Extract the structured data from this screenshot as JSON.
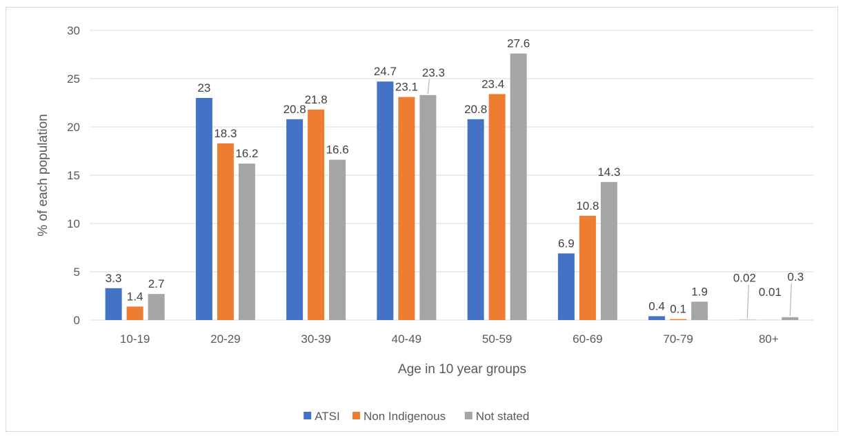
{
  "chart_data": {
    "type": "bar",
    "title": "",
    "xlabel": "Age in 10 year groups",
    "ylabel": "% of each population",
    "ylim": [
      0,
      30
    ],
    "yticks": [
      0,
      5,
      10,
      15,
      20,
      25,
      30
    ],
    "grid": true,
    "legend_position": "bottom",
    "categories": [
      "10-19",
      "20-29",
      "30-39",
      "40-49",
      "50-59",
      "60-69",
      "70-79",
      "80+"
    ],
    "series": [
      {
        "name": "ATSI",
        "color": "#4472c4",
        "values": [
          3.3,
          23,
          20.8,
          24.7,
          20.8,
          6.9,
          0.4,
          0.02
        ],
        "labels": [
          "3.3",
          "23",
          "20.8",
          "24.7",
          "20.8",
          "6.9",
          "0.4",
          "0.02"
        ]
      },
      {
        "name": "Non Indigenous",
        "color": "#ed7d31",
        "values": [
          1.4,
          18.3,
          21.8,
          23.1,
          23.4,
          10.8,
          0.1,
          0.01
        ],
        "labels": [
          "1.4",
          "18.3",
          "21.8",
          "23.1",
          "23.4",
          "10.8",
          "0.1",
          "0.01"
        ]
      },
      {
        "name": "Not stated",
        "color": "#a5a5a5",
        "values": [
          2.7,
          16.2,
          16.6,
          23.3,
          27.6,
          14.3,
          1.9,
          0.3
        ],
        "labels": [
          "2.7",
          "16.2",
          "16.6",
          "23.3",
          "27.6",
          "14.3",
          "1.9",
          "0.3"
        ]
      }
    ]
  }
}
